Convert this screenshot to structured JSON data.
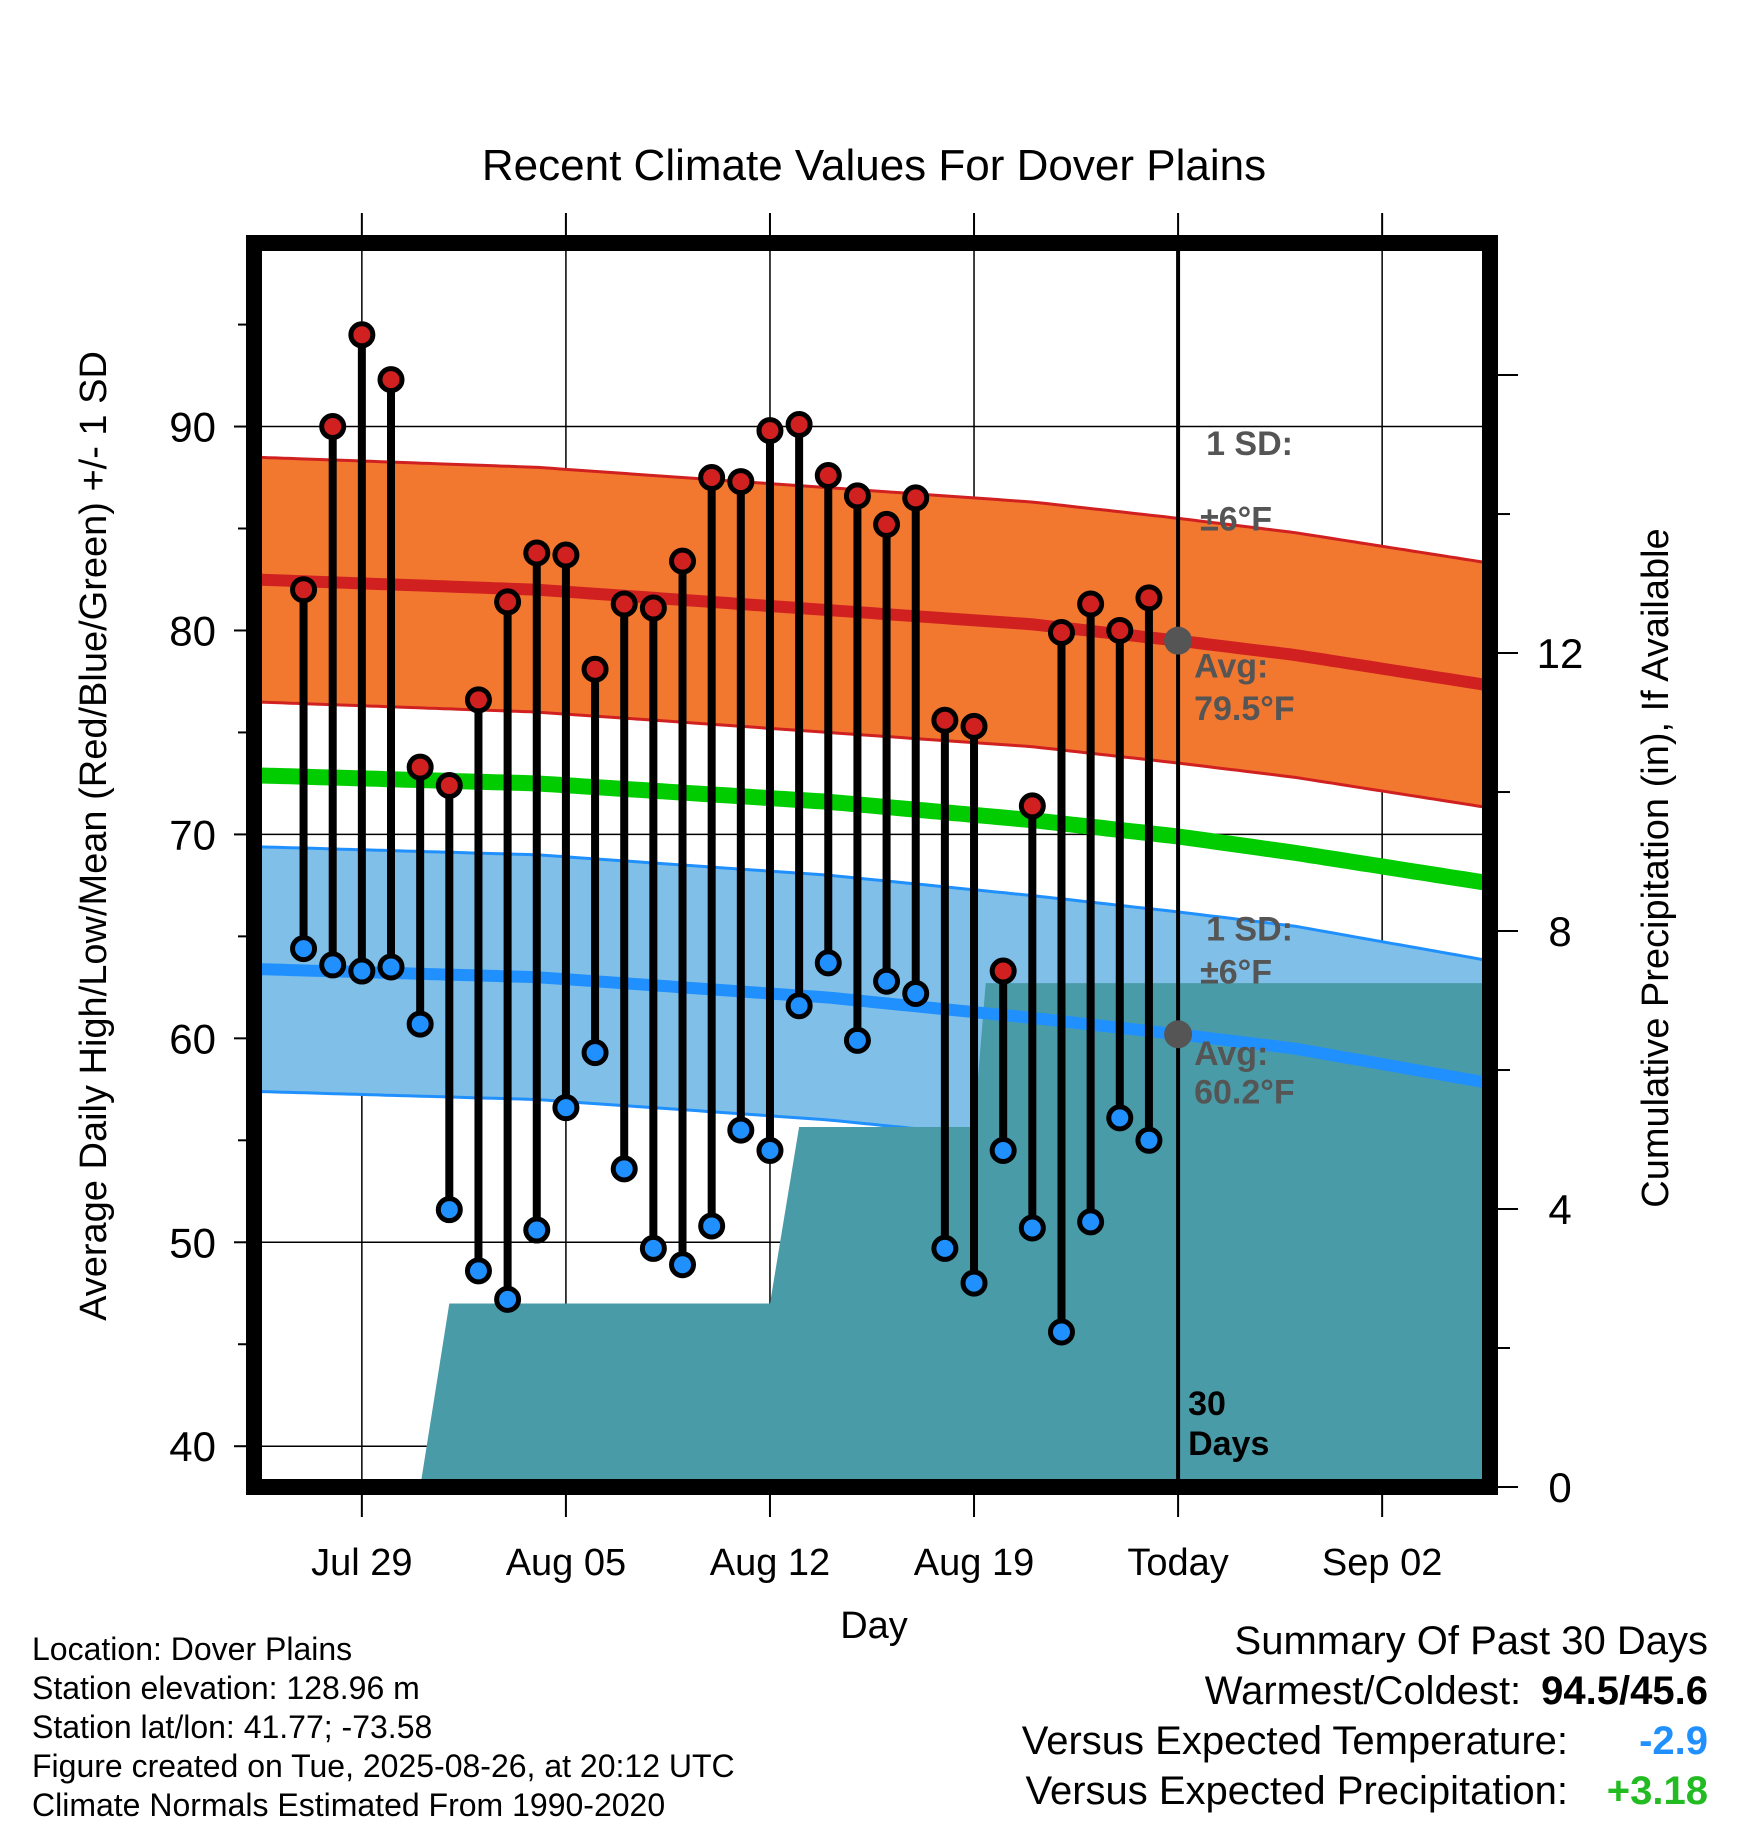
{
  "chart_data": {
    "type": "line",
    "title": "Recent Climate Values For Dover Plains",
    "xlabel": "Day",
    "ylabel": "Average Daily High/Low/Mean (Red/Blue/Green) +/- 1 SD",
    "y2label": "Cumulative Precipitation (in), If Available",
    "x_tick_labels": [
      "Jul 29",
      "Aug 05",
      "Aug 12",
      "Aug 19",
      "Today",
      "Sep 02"
    ],
    "x_tick_days": [
      4,
      11,
      18,
      25,
      32,
      39
    ],
    "xlim": [
      0.3,
      42.7
    ],
    "ylim": [
      38,
      99
    ],
    "y_ticks": [
      40,
      50,
      60,
      70,
      80,
      90
    ],
    "y2lim": [
      0,
      17.9
    ],
    "y2_ticks": [
      0,
      4,
      8,
      12
    ],
    "grid": true,
    "today_day": 32,
    "days_label": [
      "30",
      "Days"
    ],
    "normals": {
      "high_avg": {
        "x": [
          0.3,
          10,
          20,
          27,
          32,
          36,
          42.7
        ],
        "y": [
          82.5,
          82.0,
          81.0,
          80.3,
          79.5,
          78.8,
          77.3
        ]
      },
      "high_sd": 6,
      "low_avg": {
        "x": [
          0.3,
          10,
          20,
          27,
          32,
          36,
          42.7
        ],
        "y": [
          63.4,
          63.0,
          62.0,
          61.0,
          60.2,
          59.5,
          57.8
        ]
      },
      "low_sd": 6,
      "mean": {
        "x": [
          0.3,
          10,
          20,
          27,
          32,
          36,
          42.7
        ],
        "y": [
          72.9,
          72.5,
          71.6,
          70.7,
          69.9,
          69.1,
          67.6
        ]
      }
    },
    "annotations": {
      "high": {
        "sd_title": "1 SD:",
        "sd_value": "±6°F",
        "avg_title": "Avg:",
        "avg_value": "79.5°F"
      },
      "low": {
        "sd_title": "1 SD:",
        "sd_value": "±6°F",
        "avg_title": "Avg:",
        "avg_value": "60.2°F"
      }
    },
    "series": [
      {
        "name": "High",
        "color": "#d02020",
        "x": [
          2,
          3,
          4,
          5,
          6,
          7,
          8,
          9,
          10,
          11,
          12,
          13,
          14,
          15,
          16,
          17,
          18,
          19,
          20,
          21,
          22,
          23,
          24,
          25,
          26,
          27,
          28,
          29,
          30,
          31
        ],
        "values": [
          82.0,
          90.0,
          94.5,
          92.3,
          73.3,
          72.4,
          76.6,
          81.4,
          83.8,
          83.7,
          78.1,
          81.3,
          81.1,
          83.4,
          87.5,
          87.3,
          89.8,
          90.1,
          87.6,
          86.6,
          85.2,
          86.5,
          75.6,
          75.3,
          63.3,
          71.4,
          79.9,
          81.3,
          80.0,
          81.6
        ]
      },
      {
        "name": "Low",
        "color": "#2090ff",
        "x": [
          2,
          3,
          4,
          5,
          6,
          7,
          8,
          9,
          10,
          11,
          12,
          13,
          14,
          15,
          16,
          17,
          18,
          19,
          20,
          21,
          22,
          23,
          24,
          25,
          26,
          27,
          28,
          29,
          30,
          31
        ],
        "values": [
          64.4,
          63.6,
          63.3,
          63.5,
          60.7,
          51.6,
          48.6,
          47.2,
          50.6,
          56.6,
          59.3,
          53.6,
          49.7,
          48.9,
          50.8,
          55.5,
          54.5,
          61.6,
          63.7,
          59.9,
          62.8,
          62.2,
          49.7,
          48.0,
          54.5,
          50.7,
          45.6,
          51.0,
          56.1,
          55.0
        ]
      }
    ],
    "precip": {
      "x": [
        1.0,
        4.0,
        4.3,
        5.1,
        6.0,
        7.0,
        17.0,
        18.0,
        19.0,
        25.0,
        25.4,
        26.0,
        42.7
      ],
      "y": [
        0.0,
        0.0,
        0.0,
        0.0,
        0.0,
        2.64,
        2.64,
        2.64,
        5.18,
        5.18,
        7.25,
        7.25,
        7.25
      ]
    },
    "colors": {
      "high_band": "#f27830",
      "high_line": "#d02020",
      "low_band": "#80c0e8",
      "low_line": "#2090ff",
      "mean_line": "#00cc00",
      "precip_fill": "#4a9ba8",
      "annotation": "#555555"
    }
  },
  "info": {
    "location": "Location: Dover Plains",
    "elevation": "Station elevation: 128.96 m",
    "latlon": "Station lat/lon: 41.77; -73.58",
    "created": "Figure created on Tue, 2025-08-26, at 20:12 UTC",
    "normals": "Climate Normals Estimated From 1990-2020"
  },
  "summary": {
    "title": "Summary Of Past 30 Days",
    "warmest_label": "Warmest/Coldest:",
    "warmest_value": "94.5/45.6",
    "temp_label": "Versus Expected Temperature:",
    "temp_value": "-2.9",
    "temp_color": "#2090ff",
    "precip_label": "Versus Expected Precipitation:",
    "precip_value": "+3.18",
    "precip_color": "#22bb22"
  }
}
